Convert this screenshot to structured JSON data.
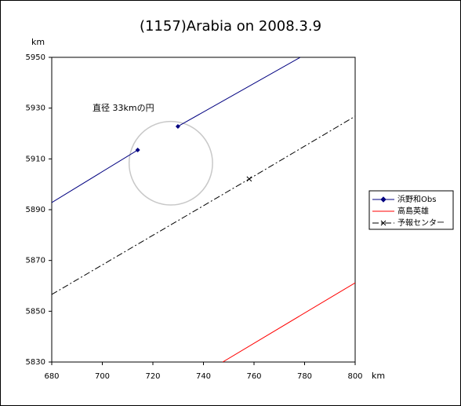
{
  "chart_data": {
    "type": "line",
    "title": "(1157)Arabia on 2008.3.9",
    "y_label": "km",
    "x_label": "km",
    "xlim": [
      680,
      800
    ],
    "xticks": [
      680,
      700,
      720,
      740,
      760,
      780,
      800
    ],
    "ylim": [
      5830,
      5950
    ],
    "yticks": [
      5830,
      5850,
      5870,
      5890,
      5910,
      5930,
      5950
    ],
    "series": [
      {
        "name": "浜野和Obs",
        "color": "#000080",
        "dash": "solid",
        "marker": "diamond",
        "x": [
          680,
          714,
          722,
          729.9,
          778.3
        ],
        "values": [
          5892.8,
          5913.5,
          null,
          5922.8,
          5950
        ]
      },
      {
        "name": "高島英雄",
        "color": "#ff0000",
        "dash": "solid",
        "marker": "none",
        "x": [
          747.6,
          800
        ],
        "values": [
          5830,
          5861.2
        ]
      },
      {
        "name": "予報センター",
        "color": "#000000",
        "dash": "dashdot",
        "marker": "cross",
        "x": [
          680,
          758.1,
          800
        ],
        "values": [
          5856.6,
          5902.1,
          5926.8
        ]
      }
    ],
    "circle": {
      "label": "直径 33kmの円",
      "x": 727.1,
      "y": 5908.3,
      "diameter": 33,
      "color": "#c8c8c8"
    },
    "legend": "right"
  }
}
